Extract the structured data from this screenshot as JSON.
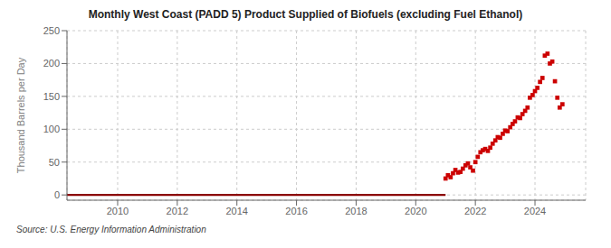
{
  "chart_data": {
    "type": "scatter",
    "title": "Monthly West Coast (PADD 5) Product Supplied of Biofuels (excluding Fuel Ethanol)",
    "y_label": "Thousand Barrels per Day",
    "annotation": "Source: U.S. Energy Information Administration",
    "xlim": [
      2008.3,
      2025.7
    ],
    "xticks": [
      2010,
      2012,
      2014,
      2016,
      2018,
      2020,
      2022,
      2024
    ],
    "ylim": [
      -8,
      250
    ],
    "yticks": [
      0,
      50,
      100,
      150,
      200,
      250
    ],
    "grid": true,
    "series": [
      {
        "type": "line",
        "color": "#8b0000",
        "x": [
          2008.3,
          2021.0
        ],
        "values": [
          0,
          0
        ]
      },
      {
        "type": "scatter",
        "color": "#cc0000",
        "marker": "square",
        "x": [
          2021.0,
          2021.08,
          2021.17,
          2021.25,
          2021.33,
          2021.42,
          2021.5,
          2021.58,
          2021.67,
          2021.75,
          2021.83,
          2021.92,
          2022.0,
          2022.08,
          2022.17,
          2022.25,
          2022.33,
          2022.42,
          2022.5,
          2022.58,
          2022.67,
          2022.75,
          2022.83,
          2022.92,
          2023.0,
          2023.08,
          2023.17,
          2023.25,
          2023.33,
          2023.42,
          2023.5,
          2023.58,
          2023.67,
          2023.75,
          2023.83,
          2023.92,
          2024.0,
          2024.08,
          2024.17,
          2024.25,
          2024.33,
          2024.42,
          2024.5,
          2024.58,
          2024.67,
          2024.75,
          2024.83,
          2024.92
        ],
        "values": [
          25,
          30,
          27,
          33,
          38,
          34,
          35,
          40,
          45,
          48,
          42,
          37,
          50,
          58,
          65,
          68,
          70,
          67,
          72,
          78,
          83,
          88,
          87,
          93,
          98,
          97,
          103,
          108,
          112,
          118,
          117,
          123,
          128,
          133,
          148,
          152,
          158,
          163,
          172,
          178,
          212,
          215,
          200,
          203,
          173,
          148,
          133,
          138
        ]
      }
    ]
  }
}
